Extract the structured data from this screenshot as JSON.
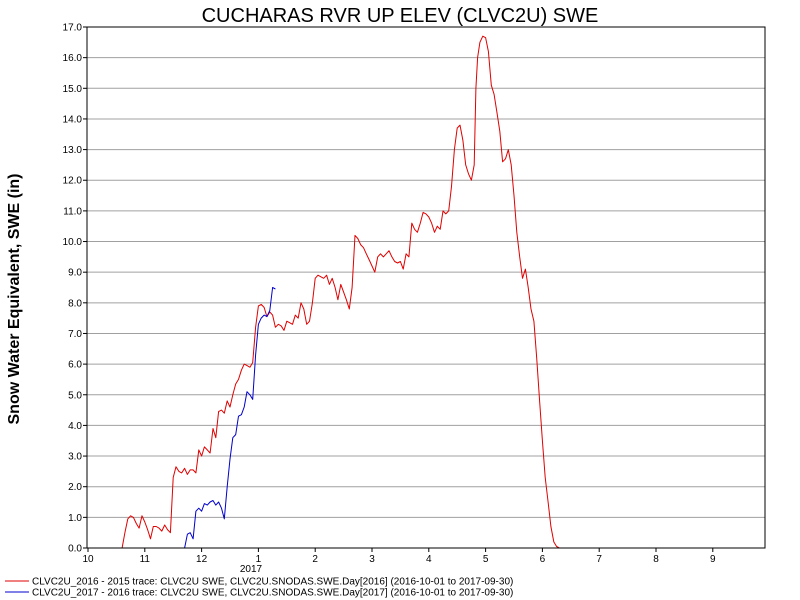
{
  "chart_data": {
    "type": "line",
    "title": "CUCHARAS RVR UP ELEV (CLVC2U) SWE",
    "ylabel": "Snow Water Equivalent, SWE (in)",
    "xlabel": "",
    "x_unit": "month",
    "x_ticks": [
      "10",
      "11",
      "12",
      "1",
      "2",
      "3",
      "4",
      "5",
      "6",
      "7",
      "8",
      "9"
    ],
    "x_year_label": "2017",
    "ylim": [
      0,
      17
    ],
    "y_ticks": [
      "0.0",
      "1.0",
      "2.0",
      "3.0",
      "4.0",
      "5.0",
      "6.0",
      "7.0",
      "8.0",
      "9.0",
      "10.0",
      "11.0",
      "12.0",
      "13.0",
      "14.0",
      "15.0",
      "16.0",
      "17.0"
    ],
    "grid": true,
    "legend_position": "bottom",
    "series": [
      {
        "name": "CLVC2U_2016 - 2015 trace: CLVC2U SWE, CLVC2U.SNODAS.SWE.Day[2016] (2016-10-01 to 2017-09-30)",
        "color": "#e00000",
        "points": [
          [
            0.6,
            0
          ],
          [
            0.65,
            0.5
          ],
          [
            0.7,
            0.95
          ],
          [
            0.75,
            1.05
          ],
          [
            0.8,
            1.0
          ],
          [
            0.85,
            0.8
          ],
          [
            0.9,
            0.65
          ],
          [
            0.95,
            1.05
          ],
          [
            1.0,
            0.85
          ],
          [
            1.05,
            0.6
          ],
          [
            1.1,
            0.3
          ],
          [
            1.15,
            0.7
          ],
          [
            1.2,
            0.7
          ],
          [
            1.25,
            0.65
          ],
          [
            1.3,
            0.55
          ],
          [
            1.35,
            0.75
          ],
          [
            1.4,
            0.6
          ],
          [
            1.45,
            0.5
          ],
          [
            1.5,
            2.3
          ],
          [
            1.55,
            2.65
          ],
          [
            1.6,
            2.5
          ],
          [
            1.65,
            2.45
          ],
          [
            1.7,
            2.6
          ],
          [
            1.75,
            2.4
          ],
          [
            1.8,
            2.55
          ],
          [
            1.85,
            2.55
          ],
          [
            1.9,
            2.45
          ],
          [
            1.95,
            3.2
          ],
          [
            2.0,
            3.0
          ],
          [
            2.05,
            3.3
          ],
          [
            2.1,
            3.2
          ],
          [
            2.15,
            3.1
          ],
          [
            2.2,
            3.9
          ],
          [
            2.25,
            3.6
          ],
          [
            2.3,
            4.45
          ],
          [
            2.35,
            4.5
          ],
          [
            2.4,
            4.4
          ],
          [
            2.45,
            4.8
          ],
          [
            2.5,
            4.6
          ],
          [
            2.55,
            5.0
          ],
          [
            2.6,
            5.35
          ],
          [
            2.65,
            5.5
          ],
          [
            2.7,
            5.8
          ],
          [
            2.75,
            6.0
          ],
          [
            2.8,
            5.95
          ],
          [
            2.85,
            5.9
          ],
          [
            2.9,
            6.05
          ],
          [
            2.95,
            7.2
          ],
          [
            3.0,
            7.9
          ],
          [
            3.05,
            7.95
          ],
          [
            3.1,
            7.85
          ],
          [
            3.15,
            7.55
          ],
          [
            3.2,
            7.7
          ],
          [
            3.25,
            7.6
          ],
          [
            3.3,
            7.2
          ],
          [
            3.35,
            7.3
          ],
          [
            3.4,
            7.25
          ],
          [
            3.45,
            7.1
          ],
          [
            3.5,
            7.4
          ],
          [
            3.55,
            7.35
          ],
          [
            3.6,
            7.3
          ],
          [
            3.65,
            7.6
          ],
          [
            3.7,
            7.5
          ],
          [
            3.75,
            8.0
          ],
          [
            3.8,
            7.8
          ],
          [
            3.85,
            7.3
          ],
          [
            3.9,
            7.4
          ],
          [
            3.95,
            8.0
          ],
          [
            4.0,
            8.8
          ],
          [
            4.05,
            8.9
          ],
          [
            4.1,
            8.85
          ],
          [
            4.15,
            8.8
          ],
          [
            4.2,
            8.9
          ],
          [
            4.25,
            8.6
          ],
          [
            4.3,
            8.8
          ],
          [
            4.35,
            8.5
          ],
          [
            4.4,
            8.1
          ],
          [
            4.45,
            8.6
          ],
          [
            4.5,
            8.35
          ],
          [
            4.55,
            8.1
          ],
          [
            4.6,
            7.8
          ],
          [
            4.65,
            8.5
          ],
          [
            4.7,
            10.2
          ],
          [
            4.75,
            10.1
          ],
          [
            4.8,
            9.9
          ],
          [
            4.85,
            9.8
          ],
          [
            4.9,
            9.6
          ],
          [
            4.95,
            9.4
          ],
          [
            5.0,
            9.2
          ],
          [
            5.05,
            9.0
          ],
          [
            5.1,
            9.5
          ],
          [
            5.15,
            9.6
          ],
          [
            5.2,
            9.5
          ],
          [
            5.25,
            9.6
          ],
          [
            5.3,
            9.7
          ],
          [
            5.35,
            9.5
          ],
          [
            5.4,
            9.35
          ],
          [
            5.45,
            9.3
          ],
          [
            5.5,
            9.35
          ],
          [
            5.55,
            9.1
          ],
          [
            5.6,
            9.6
          ],
          [
            5.65,
            9.5
          ],
          [
            5.7,
            10.6
          ],
          [
            5.75,
            10.4
          ],
          [
            5.8,
            10.3
          ],
          [
            5.85,
            10.6
          ],
          [
            5.9,
            10.95
          ],
          [
            5.95,
            10.9
          ],
          [
            6.0,
            10.8
          ],
          [
            6.05,
            10.6
          ],
          [
            6.1,
            10.3
          ],
          [
            6.15,
            10.5
          ],
          [
            6.2,
            10.4
          ],
          [
            6.25,
            11.0
          ],
          [
            6.3,
            10.9
          ],
          [
            6.35,
            11.0
          ],
          [
            6.4,
            11.8
          ],
          [
            6.45,
            13.0
          ],
          [
            6.5,
            13.7
          ],
          [
            6.55,
            13.8
          ],
          [
            6.6,
            13.3
          ],
          [
            6.65,
            12.5
          ],
          [
            6.7,
            12.2
          ],
          [
            6.75,
            12.0
          ],
          [
            6.8,
            12.5
          ],
          [
            6.83,
            15.0
          ],
          [
            6.86,
            16.0
          ],
          [
            6.9,
            16.5
          ],
          [
            6.95,
            16.7
          ],
          [
            7.0,
            16.65
          ],
          [
            7.05,
            16.2
          ],
          [
            7.1,
            15.1
          ],
          [
            7.15,
            14.8
          ],
          [
            7.2,
            14.2
          ],
          [
            7.25,
            13.6
          ],
          [
            7.3,
            12.6
          ],
          [
            7.35,
            12.7
          ],
          [
            7.4,
            13.0
          ],
          [
            7.45,
            12.5
          ],
          [
            7.5,
            11.5
          ],
          [
            7.55,
            10.3
          ],
          [
            7.6,
            9.5
          ],
          [
            7.65,
            8.8
          ],
          [
            7.7,
            9.1
          ],
          [
            7.75,
            8.5
          ],
          [
            7.8,
            7.8
          ],
          [
            7.85,
            7.4
          ],
          [
            7.9,
            6.2
          ],
          [
            7.95,
            4.8
          ],
          [
            8.0,
            3.5
          ],
          [
            8.05,
            2.3
          ],
          [
            8.1,
            1.5
          ],
          [
            8.15,
            0.7
          ],
          [
            8.2,
            0.2
          ],
          [
            8.25,
            0.05
          ],
          [
            8.3,
            0.0
          ]
        ]
      },
      {
        "name": "CLVC2U_2017 - 2016 trace: CLVC2U SWE, CLVC2U.SNODAS.SWE.Day[2017] (2016-10-01 to 2017-09-30)",
        "color": "#0000cc",
        "points": [
          [
            1.7,
            0
          ],
          [
            1.75,
            0.45
          ],
          [
            1.8,
            0.5
          ],
          [
            1.85,
            0.3
          ],
          [
            1.9,
            1.2
          ],
          [
            1.95,
            1.3
          ],
          [
            2.0,
            1.2
          ],
          [
            2.05,
            1.45
          ],
          [
            2.1,
            1.4
          ],
          [
            2.15,
            1.5
          ],
          [
            2.2,
            1.55
          ],
          [
            2.25,
            1.4
          ],
          [
            2.3,
            1.5
          ],
          [
            2.35,
            1.3
          ],
          [
            2.4,
            0.95
          ],
          [
            2.45,
            2.0
          ],
          [
            2.5,
            2.9
          ],
          [
            2.55,
            3.6
          ],
          [
            2.6,
            3.7
          ],
          [
            2.65,
            4.3
          ],
          [
            2.7,
            4.35
          ],
          [
            2.75,
            4.6
          ],
          [
            2.8,
            5.1
          ],
          [
            2.85,
            5.0
          ],
          [
            2.9,
            4.85
          ],
          [
            2.95,
            6.3
          ],
          [
            3.0,
            7.3
          ],
          [
            3.05,
            7.5
          ],
          [
            3.1,
            7.6
          ],
          [
            3.15,
            7.55
          ],
          [
            3.2,
            7.75
          ],
          [
            3.25,
            8.5
          ],
          [
            3.3,
            8.45
          ]
        ]
      }
    ]
  }
}
